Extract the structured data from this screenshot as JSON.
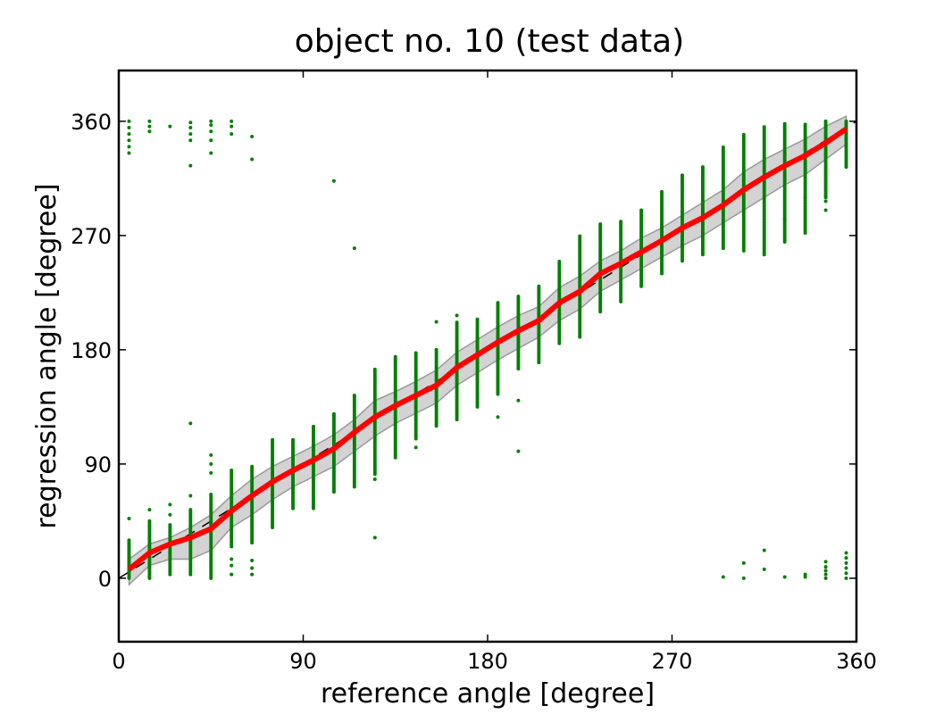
{
  "chart_data": {
    "type": "scatter",
    "title": "object no. 10 (test data)",
    "xlabel": "reference angle [degree]",
    "ylabel": "regression angle [degree]",
    "xlim": [
      0,
      360
    ],
    "ylim": [
      -50,
      400
    ],
    "xticks": [
      0,
      90,
      180,
      270,
      360
    ],
    "yticks": [
      0,
      90,
      180,
      270,
      360
    ],
    "grid": false,
    "colors": {
      "scatter": "#008000",
      "mean_line": "#ff0000",
      "band": "#d3d3d3",
      "band_edge": "#999999",
      "ideal_line": "#000000"
    },
    "x": [
      5,
      15,
      25,
      35,
      45,
      55,
      65,
      75,
      85,
      95,
      105,
      115,
      125,
      135,
      145,
      155,
      165,
      175,
      185,
      195,
      205,
      215,
      225,
      235,
      245,
      255,
      265,
      275,
      285,
      295,
      305,
      315,
      325,
      335,
      345,
      355
    ],
    "mean": [
      7,
      20,
      27,
      32,
      39,
      53,
      65,
      76,
      85,
      93,
      102,
      115,
      127,
      136,
      144,
      152,
      166,
      176,
      186,
      195,
      203,
      217,
      226,
      240,
      248,
      257,
      266,
      276,
      284,
      294,
      306,
      316,
      325,
      333,
      343,
      354
    ],
    "band_low": [
      -5,
      10,
      15,
      15,
      22,
      40,
      50,
      62,
      72,
      80,
      88,
      100,
      112,
      122,
      130,
      138,
      152,
      162,
      172,
      181,
      190,
      203,
      212,
      226,
      235,
      244,
      253,
      262,
      270,
      280,
      290,
      300,
      310,
      318,
      330,
      342
    ],
    "band_high": [
      15,
      27,
      32,
      40,
      50,
      65,
      78,
      88,
      96,
      104,
      113,
      125,
      140,
      147,
      155,
      164,
      178,
      188,
      198,
      207,
      214,
      229,
      238,
      250,
      258,
      268,
      276,
      286,
      296,
      306,
      320,
      330,
      338,
      346,
      356,
      364
    ],
    "dense_range": [
      [
        0,
        30
      ],
      [
        0,
        45
      ],
      [
        3,
        42
      ],
      [
        3,
        54
      ],
      [
        0,
        67
      ],
      [
        25,
        86
      ],
      [
        28,
        88
      ],
      [
        40,
        110
      ],
      [
        55,
        110
      ],
      [
        55,
        120
      ],
      [
        68,
        130
      ],
      [
        72,
        145
      ],
      [
        82,
        165
      ],
      [
        95,
        175
      ],
      [
        110,
        178
      ],
      [
        120,
        180
      ],
      [
        125,
        202
      ],
      [
        135,
        205
      ],
      [
        145,
        218
      ],
      [
        165,
        222
      ],
      [
        170,
        230
      ],
      [
        185,
        250
      ],
      [
        190,
        270
      ],
      [
        210,
        280
      ],
      [
        218,
        282
      ],
      [
        230,
        290
      ],
      [
        240,
        305
      ],
      [
        250,
        318
      ],
      [
        255,
        325
      ],
      [
        260,
        340
      ],
      [
        258,
        350
      ],
      [
        255,
        356
      ],
      [
        265,
        358
      ],
      [
        272,
        358
      ],
      [
        300,
        360
      ],
      [
        324,
        360
      ]
    ],
    "outliers": [
      [
        5,
        47
      ],
      [
        15,
        54
      ],
      [
        25,
        50
      ],
      [
        25,
        58
      ],
      [
        35,
        65
      ],
      [
        35,
        122
      ],
      [
        45,
        83
      ],
      [
        45,
        90
      ],
      [
        45,
        97
      ],
      [
        55,
        3
      ],
      [
        55,
        10
      ],
      [
        55,
        15
      ],
      [
        65,
        3
      ],
      [
        65,
        8
      ],
      [
        65,
        14
      ],
      [
        105,
        313
      ],
      [
        115,
        260
      ],
      [
        125,
        32
      ],
      [
        125,
        78
      ],
      [
        145,
        103
      ],
      [
        155,
        202
      ],
      [
        165,
        207
      ],
      [
        185,
        127
      ],
      [
        195,
        140
      ],
      [
        195,
        100
      ],
      [
        325,
        283
      ],
      [
        335,
        300
      ],
      [
        345,
        290
      ],
      [
        345,
        297
      ],
      [
        5,
        335
      ],
      [
        5,
        340
      ],
      [
        5,
        345
      ],
      [
        5,
        350
      ],
      [
        5,
        355
      ],
      [
        5,
        360
      ],
      [
        15,
        352
      ],
      [
        15,
        356
      ],
      [
        15,
        360
      ],
      [
        25,
        356
      ],
      [
        35,
        325
      ],
      [
        35,
        345
      ],
      [
        35,
        350
      ],
      [
        35,
        355
      ],
      [
        35,
        359
      ],
      [
        45,
        335
      ],
      [
        45,
        345
      ],
      [
        45,
        352
      ],
      [
        45,
        357
      ],
      [
        45,
        360
      ],
      [
        55,
        350
      ],
      [
        55,
        356
      ],
      [
        55,
        360
      ],
      [
        65,
        330
      ],
      [
        65,
        348
      ],
      [
        295,
        1
      ],
      [
        305,
        0
      ],
      [
        305,
        12
      ],
      [
        315,
        7
      ],
      [
        315,
        22
      ],
      [
        325,
        1
      ],
      [
        335,
        1
      ],
      [
        335,
        3
      ],
      [
        345,
        0
      ],
      [
        345,
        3
      ],
      [
        345,
        6
      ],
      [
        345,
        9
      ],
      [
        345,
        13
      ],
      [
        355,
        0
      ],
      [
        355,
        4
      ],
      [
        355,
        8
      ],
      [
        355,
        12
      ],
      [
        355,
        16
      ],
      [
        355,
        20
      ]
    ],
    "ideal_line": [
      [
        0,
        0
      ],
      [
        360,
        360
      ]
    ]
  }
}
